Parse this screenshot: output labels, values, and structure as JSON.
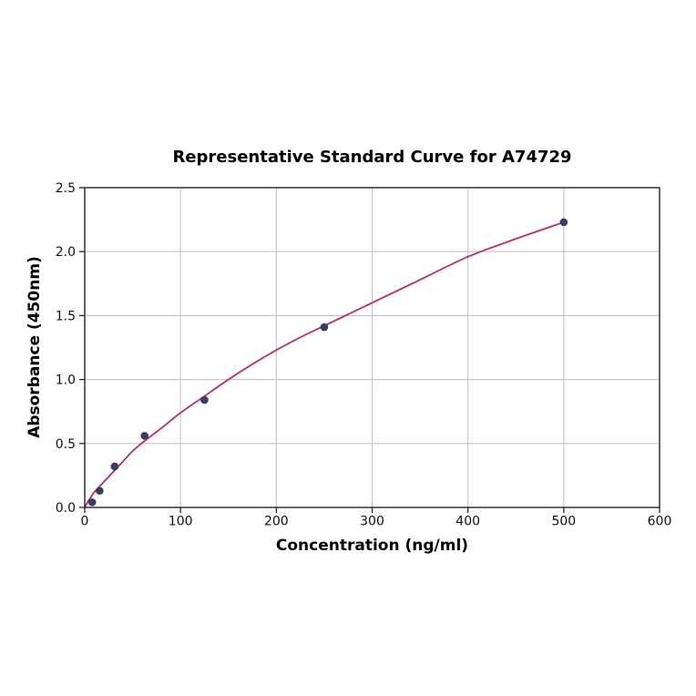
{
  "chart_data": {
    "type": "scatter",
    "title": "Representative Standard Curve for A74729",
    "xlabel": "Concentration (ng/ml)",
    "ylabel": "Absorbance (450nm)",
    "xlim": [
      0,
      600
    ],
    "ylim": [
      0,
      2.5
    ],
    "x_ticks": [
      0,
      100,
      200,
      300,
      400,
      500,
      600
    ],
    "x_tick_labels": [
      "0",
      "100",
      "200",
      "300",
      "400",
      "500",
      "600"
    ],
    "y_ticks": [
      0,
      0.5,
      1.0,
      1.5,
      2.0,
      2.5
    ],
    "y_tick_labels": [
      "0.0",
      "0.5",
      "1.0",
      "1.5",
      "2.0",
      "2.5"
    ],
    "grid": true,
    "legend": "none",
    "points": [
      {
        "x": 7.8,
        "y": 0.04
      },
      {
        "x": 15.6,
        "y": 0.13
      },
      {
        "x": 31.25,
        "y": 0.32
      },
      {
        "x": 62.5,
        "y": 0.56
      },
      {
        "x": 125,
        "y": 0.84
      },
      {
        "x": 250,
        "y": 1.41
      },
      {
        "x": 500,
        "y": 2.23
      }
    ],
    "fit_curve": {
      "x": [
        0,
        2.5,
        5,
        10,
        15.6,
        20,
        31.25,
        40,
        50,
        62.5,
        80,
        100,
        125,
        150,
        175,
        200,
        225,
        250,
        300,
        350,
        400,
        450,
        500
      ],
      "y": [
        0,
        0.035,
        0.065,
        0.12,
        0.165,
        0.2,
        0.29,
        0.36,
        0.44,
        0.52,
        0.62,
        0.74,
        0.87,
        1.0,
        1.12,
        1.23,
        1.33,
        1.42,
        1.6,
        1.78,
        1.96,
        2.1,
        2.23
      ]
    },
    "colors": {
      "curve": "#b93763",
      "marker": "#333f66",
      "grid": "#c6c6c6",
      "axis": "#262626",
      "tick_text": "#111111",
      "background": "#ffffff"
    }
  }
}
